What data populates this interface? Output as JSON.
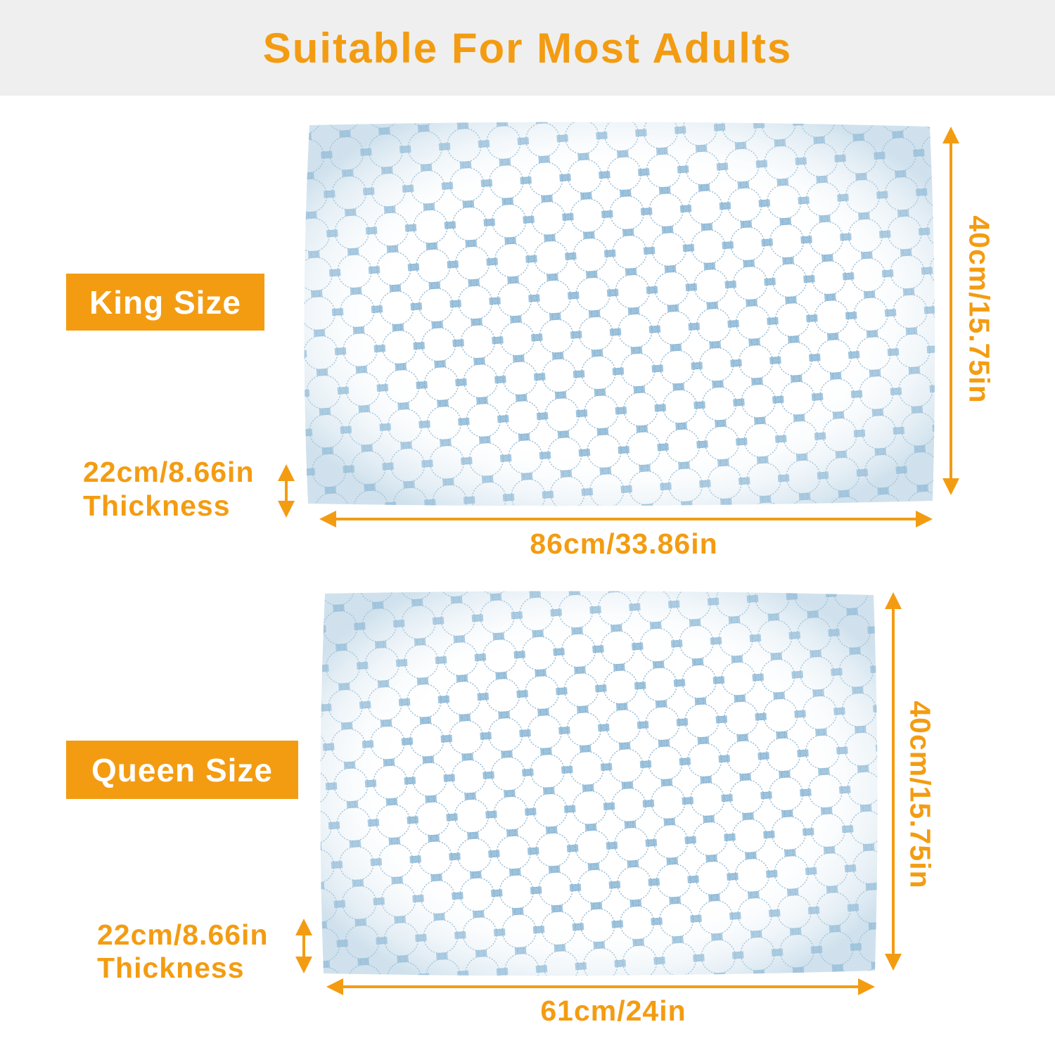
{
  "title": "Suitable For Most Adults",
  "colors": {
    "accent": "#f39c12",
    "band": "#efefef",
    "pillow_stitch": "#6fa6c8"
  },
  "king": {
    "label": "King Size",
    "height": "40cm/15.75in",
    "width": "86cm/33.86in",
    "thickness_value": "22cm/8.66in",
    "thickness_label": "Thickness"
  },
  "queen": {
    "label": "Queen Size",
    "height": "40cm/15.75in",
    "width": "61cm/24in",
    "thickness_value": "22cm/8.66in",
    "thickness_label": "Thickness"
  }
}
